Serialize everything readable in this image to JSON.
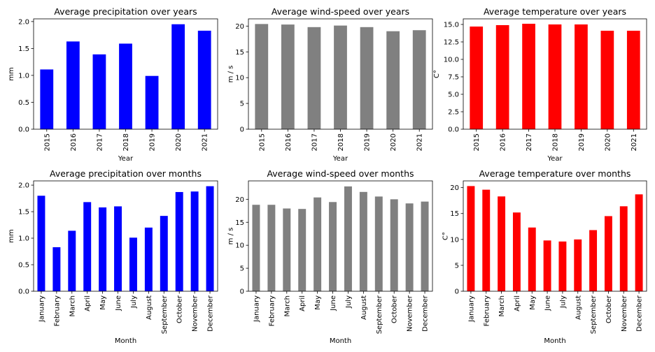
{
  "colors": {
    "blue": "#0000ff",
    "gray": "#808080",
    "red": "#ff0000"
  },
  "chart_data": [
    {
      "type": "bar",
      "title": "Average precipitation over years",
      "xlabel": "Year",
      "ylabel": "mm",
      "categories": [
        "2015",
        "2016",
        "2017",
        "2018",
        "2019",
        "2020",
        "2021"
      ],
      "values": [
        1.11,
        1.63,
        1.39,
        1.59,
        0.99,
        1.95,
        1.83
      ],
      "ylim": [
        0,
        2.05
      ],
      "yticks": [
        0.0,
        0.5,
        1.0,
        1.5,
        2.0
      ],
      "ytick_labels": [
        "0.0",
        "0.5",
        "1.0",
        "1.5",
        "2.0"
      ],
      "color": "#0000ff",
      "grid": false
    },
    {
      "type": "bar",
      "title": "Average wind-speed over years",
      "xlabel": "Year",
      "ylabel": "m / s",
      "categories": [
        "2015",
        "2016",
        "2017",
        "2018",
        "2019",
        "2020",
        "2021"
      ],
      "values": [
        20.4,
        20.3,
        19.8,
        20.1,
        19.8,
        19.0,
        19.2
      ],
      "ylim": [
        0,
        21.4
      ],
      "yticks": [
        0,
        5,
        10,
        15,
        20
      ],
      "ytick_labels": [
        "0",
        "5",
        "10",
        "15",
        "20"
      ],
      "color": "#808080",
      "grid": false
    },
    {
      "type": "bar",
      "title": "Average temperature over years",
      "xlabel": "Year",
      "ylabel": "C°",
      "categories": [
        "2015",
        "2016",
        "2017",
        "2018",
        "2019",
        "2020",
        "2021"
      ],
      "values": [
        14.7,
        14.9,
        15.1,
        15.0,
        15.0,
        14.1,
        14.1
      ],
      "ylim": [
        0,
        15.8
      ],
      "yticks": [
        0.0,
        2.5,
        5.0,
        7.5,
        10.0,
        12.5,
        15.0
      ],
      "ytick_labels": [
        "0.0",
        "2.5",
        "5.0",
        "7.5",
        "10.0",
        "12.5",
        "15.0"
      ],
      "color": "#ff0000",
      "grid": false
    },
    {
      "type": "bar",
      "title": "Average precipitation over months",
      "xlabel": "Month",
      "ylabel": "mm",
      "categories": [
        "January",
        "February",
        "March",
        "April",
        "May",
        "June",
        "July",
        "August",
        "September",
        "October",
        "November",
        "December"
      ],
      "values": [
        1.8,
        0.83,
        1.14,
        1.68,
        1.58,
        1.6,
        1.01,
        1.2,
        1.42,
        1.87,
        1.88,
        1.98
      ],
      "ylim": [
        0,
        2.08
      ],
      "yticks": [
        0.0,
        0.5,
        1.0,
        1.5,
        2.0
      ],
      "ytick_labels": [
        "0.0",
        "0.5",
        "1.0",
        "1.5",
        "2.0"
      ],
      "color": "#0000ff",
      "grid": false
    },
    {
      "type": "bar",
      "title": "Average wind-speed over months",
      "xlabel": "Month",
      "ylabel": "m / s",
      "categories": [
        "January",
        "February",
        "March",
        "April",
        "May",
        "June",
        "July",
        "August",
        "September",
        "October",
        "November",
        "December"
      ],
      "values": [
        18.8,
        18.8,
        18.0,
        17.9,
        20.4,
        19.4,
        22.8,
        21.6,
        20.6,
        20.0,
        19.1,
        19.5
      ],
      "ylim": [
        0,
        24.0
      ],
      "yticks": [
        0,
        5,
        10,
        15,
        20
      ],
      "ytick_labels": [
        "0",
        "5",
        "10",
        "15",
        "20"
      ],
      "color": "#808080",
      "grid": false
    },
    {
      "type": "bar",
      "title": "Average temperature over months",
      "xlabel": "Month",
      "ylabel": "C°",
      "categories": [
        "January",
        "February",
        "March",
        "April",
        "May",
        "June",
        "July",
        "August",
        "September",
        "October",
        "November",
        "December"
      ],
      "values": [
        20.3,
        19.6,
        18.3,
        15.2,
        12.3,
        9.8,
        9.6,
        10.0,
        11.8,
        14.5,
        16.4,
        18.7
      ],
      "ylim": [
        0,
        21.3
      ],
      "yticks": [
        0,
        5,
        10,
        15,
        20
      ],
      "ytick_labels": [
        "0",
        "5",
        "10",
        "15",
        "20"
      ],
      "color": "#ff0000",
      "grid": false
    }
  ]
}
